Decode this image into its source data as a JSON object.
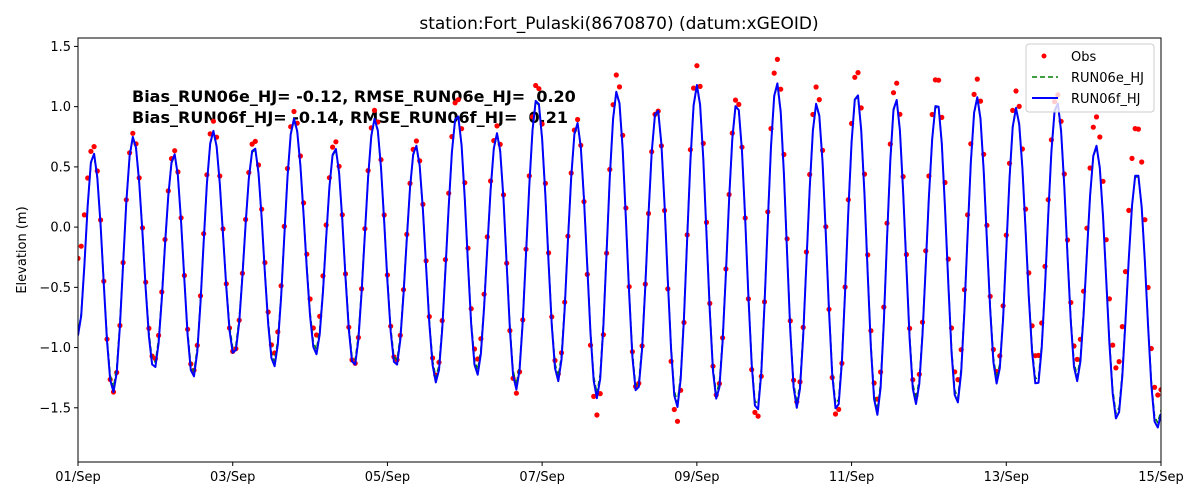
{
  "chart_data": {
    "type": "line",
    "title": "station:Fort_Pulaski(8670870) (datum:xGEOID)",
    "xlabel": "",
    "ylabel": "Elevation (m)",
    "xlim": [
      "01 00:00",
      "15 00:00"
    ],
    "ylim": [
      -1.95,
      1.57
    ],
    "x_ticks": [
      "01/Sep",
      "03/Sep",
      "05/Sep",
      "07/Sep",
      "09/Sep",
      "11/Sep",
      "13/Sep",
      "15/Sep"
    ],
    "y_ticks": [
      -1.5,
      -1.0,
      -0.5,
      0.0,
      0.5,
      1.0,
      1.5
    ],
    "y_tick_labels": [
      "−1.5",
      "−1.0",
      "−0.5",
      "0.0",
      "0.5",
      "1.0",
      "1.5"
    ],
    "grid": false,
    "legend_placement": "top-right",
    "annotations": [
      "Bias_RUN06e_HJ= -0.12, RMSE_RUN06e_HJ=  0.20",
      "Bias_RUN06f_HJ= -0.14, RMSE_RUN06f_HJ=  0.21"
    ],
    "sampling": "hourly",
    "extreme_times": [
      "01 04:42",
      "01 10:54",
      "01 17:06",
      "01 23:36",
      "02 05:48",
      "02 11:42",
      "02 17:54",
      "03 00:24",
      "03 06:36",
      "03 12:48",
      "03 19:00",
      "04 01:48",
      "04 07:42",
      "04 13:36",
      "04 20:06",
      "05 02:36",
      "05 08:48",
      "05 15:06",
      "05 21:36",
      "06 03:48",
      "06 10:00",
      "06 15:54",
      "06 22:24",
      "07 04:54",
      "07 10:48",
      "07 17:00",
      "07 23:12",
      "08 05:24",
      "08 11:36",
      "08 17:48",
      "09 00:00",
      "09 06:12",
      "09 12:24",
      "09 18:36",
      "10 00:48",
      "10 07:00",
      "10 13:12",
      "10 19:24",
      "11 01:36",
      "11 07:54",
      "11 13:42",
      "11 19:54",
      "12 02:30",
      "12 08:42",
      "12 14:54",
      "12 21:06",
      "13 03:00",
      "13 09:30",
      "13 15:42",
      "13 21:54",
      "14 03:48",
      "14 10:18",
      "14 16:30",
      "14 22:42"
    ],
    "series": [
      {
        "name": "Obs",
        "style": "points",
        "color": "#ff0000",
        "start_value": -0.26,
        "end_value": -1.35,
        "extreme_values": [
          0.68,
          -1.37,
          0.78,
          -1.11,
          0.64,
          -1.2,
          0.88,
          -1.05,
          0.73,
          -1.05,
          0.96,
          -0.9,
          0.72,
          -1.15,
          0.97,
          -1.12,
          0.72,
          -1.23,
          1.08,
          -1.1,
          0.84,
          -1.38,
          1.2,
          -1.22,
          0.9,
          -1.56,
          1.27,
          -1.35,
          0.99,
          -1.62,
          1.34,
          -1.4,
          1.08,
          -1.6,
          1.4,
          -1.45,
          1.17,
          -1.58,
          1.31,
          -1.43,
          1.21,
          -1.4,
          1.26,
          -1.28,
          1.23,
          -1.2,
          1.13,
          -1.1,
          1.11,
          -1.1,
          0.92,
          -1.18,
          0.85,
          -1.4
        ]
      },
      {
        "name": "RUN06e_HJ",
        "style": "dashed",
        "color": "#008000",
        "start_value": -0.88,
        "end_value": -1.52,
        "extreme_values": [
          0.61,
          -1.33,
          0.74,
          -1.14,
          0.6,
          -1.21,
          0.79,
          -1.02,
          0.66,
          -1.12,
          0.89,
          -1.02,
          0.65,
          -1.12,
          0.89,
          -1.12,
          0.67,
          -1.25,
          0.93,
          -1.19,
          0.77,
          -1.31,
          1.06,
          -1.24,
          0.86,
          -1.38,
          1.12,
          -1.34,
          0.98,
          -1.46,
          1.17,
          -1.39,
          1.02,
          -1.5,
          1.19,
          -1.46,
          1.02,
          -1.49,
          1.11,
          -1.52,
          1.06,
          -1.43,
          1.03,
          -1.43,
          1.07,
          -1.26,
          0.98,
          -1.29,
          1.03,
          -1.24,
          0.67,
          -1.56,
          0.45,
          -1.64
        ]
      },
      {
        "name": "RUN06f_HJ",
        "style": "solid",
        "color": "#0000ff",
        "start_value": -0.9,
        "end_value": -1.55,
        "extreme_values": [
          0.62,
          -1.37,
          0.75,
          -1.18,
          0.61,
          -1.25,
          0.8,
          -1.06,
          0.67,
          -1.16,
          0.9,
          -1.06,
          0.66,
          -1.16,
          0.9,
          -1.16,
          0.68,
          -1.29,
          0.94,
          -1.23,
          0.78,
          -1.35,
          1.07,
          -1.28,
          0.87,
          -1.42,
          1.13,
          -1.38,
          0.99,
          -1.5,
          1.18,
          -1.43,
          1.03,
          -1.54,
          1.2,
          -1.5,
          1.03,
          -1.53,
          1.12,
          -1.56,
          1.07,
          -1.47,
          1.04,
          -1.47,
          1.08,
          -1.3,
          0.99,
          -1.33,
          1.04,
          -1.28,
          0.68,
          -1.6,
          0.46,
          -1.68
        ]
      }
    ]
  }
}
